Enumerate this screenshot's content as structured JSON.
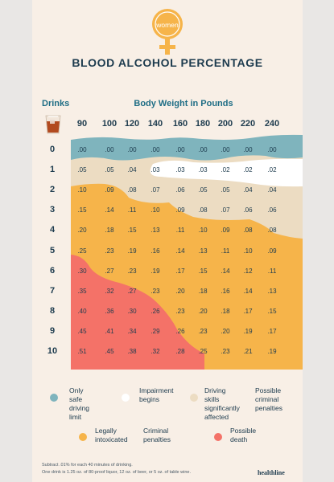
{
  "header": {
    "gender_label": "women",
    "title": "BLOOD ALCOHOL PERCENTAGE"
  },
  "table": {
    "drinks_label": "Drinks",
    "weight_label": "Body Weight in Pounds",
    "weights": [
      "90",
      "100",
      "120",
      "140",
      "160",
      "180",
      "200",
      "220",
      "240"
    ],
    "drinks": [
      "0",
      "1",
      "2",
      "3",
      "4",
      "5",
      "6",
      "7",
      "8",
      "9",
      "10"
    ],
    "values": [
      [
        ".00",
        ".00",
        ".00",
        ".00",
        ".00",
        ".00",
        ".00",
        ".00",
        ".00"
      ],
      [
        ".05",
        ".05",
        ".04",
        ".03",
        ".03",
        ".03",
        ".02",
        ".02",
        ".02"
      ],
      [
        ".10",
        ".09",
        ".08",
        ".07",
        ".06",
        ".05",
        ".05",
        ".04",
        ".04"
      ],
      [
        ".15",
        ".14",
        ".11",
        ".10",
        ".09",
        ".08",
        ".07",
        ".06",
        ".06"
      ],
      [
        ".20",
        ".18",
        ".15",
        ".13",
        ".11",
        ".10",
        ".09",
        ".08",
        ".08"
      ],
      [
        ".25",
        ".23",
        ".19",
        ".16",
        ".14",
        ".13",
        ".11",
        ".10",
        ".09"
      ],
      [
        ".30",
        ".27",
        ".23",
        ".19",
        ".17",
        ".15",
        ".14",
        ".12",
        ".11"
      ],
      [
        ".35",
        ".32",
        ".27",
        ".23",
        ".20",
        ".18",
        ".16",
        ".14",
        ".13"
      ],
      [
        ".40",
        ".36",
        ".30",
        ".26",
        ".23",
        ".20",
        ".18",
        ".17",
        ".15"
      ],
      [
        ".45",
        ".41",
        ".34",
        ".29",
        ".26",
        ".23",
        ".20",
        ".19",
        ".17"
      ],
      [
        ".51",
        ".45",
        ".38",
        ".32",
        ".28",
        ".25",
        ".23",
        ".21",
        ".19"
      ]
    ]
  },
  "colors": {
    "safe": "#7fb4bd",
    "impairment": "#ffffff",
    "driving": "#ecdcc2",
    "intoxicated": "#f6b44a",
    "possible_death": "#f47268"
  },
  "legend": [
    {
      "key": "safe",
      "label_1": "Only safe",
      "label_2": "driving limit"
    },
    {
      "key": "impairment",
      "label_1": "Impairment",
      "label_2": "begins"
    },
    {
      "key": "driving",
      "label_1": "Driving skills",
      "label_2": "significantly",
      "label_3": "affected",
      "extra_1": "Possible",
      "extra_2": "criminal",
      "extra_3": "penalties"
    },
    {
      "key": "intoxicated",
      "label_1": "Legally",
      "label_2": "intoxicated",
      "extra_1": "Criminal",
      "extra_2": "penalties"
    },
    {
      "key": "possible_death",
      "label_1": "Possible",
      "label_2": "death"
    }
  ],
  "footer": {
    "note_1": "Subtract .01% for each 40 minutes of drinking.",
    "note_2": "One drink is 1.25 oz. of 80-proof liquor, 12 oz. of beer, or 5 oz. of table wine.",
    "brand": "healthline"
  }
}
